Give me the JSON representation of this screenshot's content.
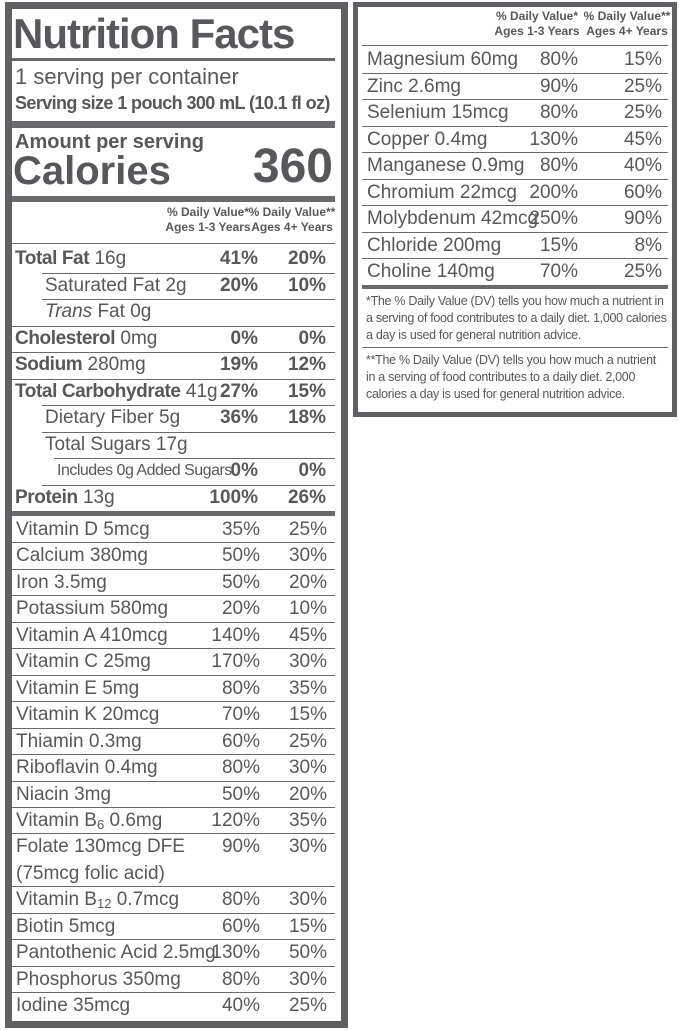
{
  "left": {
    "title": "Nutrition Facts",
    "servings": "1 serving per container",
    "serving_size": "Serving size 1 pouch 300 mL (10.1 fl oz)",
    "amount_per_serving": "Amount per serving",
    "calories_label": "Calories",
    "calories": "360",
    "dv_header": [
      [
        "% Daily Value*",
        "Ages 1-3 Years"
      ],
      [
        "% Daily Value**",
        "Ages 4+ Years"
      ]
    ],
    "nutrients": [
      {
        "name": "Total Fat",
        "amount": "16g",
        "dv1": "41%",
        "dv2": "20%"
      },
      {
        "name": "Saturated Fat",
        "amount": "2g",
        "dv1": "20%",
        "dv2": "10%"
      },
      {
        "name_italic": "Trans",
        "name": "Fat",
        "amount": "0g"
      },
      {
        "name": "Cholesterol",
        "amount": "0mg",
        "dv1": "0%",
        "dv2": "0%"
      },
      {
        "name": "Sodium",
        "amount": "280mg",
        "dv1": "19%",
        "dv2": "12%"
      },
      {
        "name": "Total Carbohydrate",
        "amount": "41g",
        "dv1": "27%",
        "dv2": "15%"
      },
      {
        "name": "Dietary Fiber",
        "amount": "5g",
        "dv1": "36%",
        "dv2": "18%"
      },
      {
        "name": "Total Sugars",
        "amount": "17g"
      },
      {
        "name": "Includes 0g Added Sugars",
        "dv1": "0%",
        "dv2": "0%"
      },
      {
        "name": "Protein",
        "amount": "13g",
        "dv1": "100%",
        "dv2": "26%"
      }
    ],
    "vitamins": [
      {
        "label": "Vitamin D 5mcg",
        "dv1": "35%",
        "dv2": "25%"
      },
      {
        "label": "Calcium 380mg",
        "dv1": "50%",
        "dv2": "30%"
      },
      {
        "label": "Iron 3.5mg",
        "dv1": "50%",
        "dv2": "20%"
      },
      {
        "label": "Potassium 580mg",
        "dv1": "20%",
        "dv2": "10%"
      },
      {
        "label": "Vitamin A 410mcg",
        "dv1": "140%",
        "dv2": "45%"
      },
      {
        "label": "Vitamin C 25mg",
        "dv1": "170%",
        "dv2": "30%"
      },
      {
        "label": "Vitamin E 5mg",
        "dv1": "80%",
        "dv2": "35%"
      },
      {
        "label": "Vitamin K 20mcg",
        "dv1": "70%",
        "dv2": "15%"
      },
      {
        "label": "Thiamin 0.3mg",
        "dv1": "60%",
        "dv2": "25%"
      },
      {
        "label": "Riboflavin 0.4mg",
        "dv1": "80%",
        "dv2": "30%"
      },
      {
        "label": "Niacin 3mg",
        "dv1": "50%",
        "dv2": "20%"
      },
      {
        "label": "Vitamin B",
        "sub": "6",
        "amount": "0.6mg",
        "dv1": "120%",
        "dv2": "35%"
      },
      {
        "label": "Folate 130mcg DFE",
        "note": "(75mcg folic acid)",
        "dv1": "90%",
        "dv2": "30%"
      },
      {
        "label": "Vitamin B",
        "sub": "12",
        "amount": "0.7mcg",
        "dv1": "80%",
        "dv2": "30%"
      },
      {
        "label": "Biotin 5mcg",
        "dv1": "60%",
        "dv2": "15%"
      },
      {
        "label": "Pantothenic Acid 2.5mg",
        "dv1": "130%",
        "dv2": "50%"
      },
      {
        "label": "Phosphorus 350mg",
        "dv1": "80%",
        "dv2": "30%"
      },
      {
        "label": "Iodine 35mcg",
        "dv1": "40%",
        "dv2": "25%"
      }
    ]
  },
  "right": {
    "dv_header": [
      [
        "% Daily Value*",
        "Ages 1-3 Years"
      ],
      [
        "% Daily Value**",
        "Ages 4+ Years"
      ]
    ],
    "rows": [
      {
        "label": "Magnesium 60mg",
        "dv1": "80%",
        "dv2": "15%"
      },
      {
        "label": "Zinc 2.6mg",
        "dv1": "90%",
        "dv2": "25%"
      },
      {
        "label": "Selenium 15mcg",
        "dv1": "80%",
        "dv2": "25%"
      },
      {
        "label": "Copper 0.4mg",
        "dv1": "130%",
        "dv2": "45%"
      },
      {
        "label": "Manganese 0.9mg",
        "dv1": "80%",
        "dv2": "40%"
      },
      {
        "label": "Chromium 22mcg",
        "dv1": "200%",
        "dv2": "60%"
      },
      {
        "label": "Molybdenum 42mcg",
        "dv1": "250%",
        "dv2": "90%"
      },
      {
        "label": "Chloride 200mg",
        "dv1": "15%",
        "dv2": "8%"
      },
      {
        "label": "Choline 140mg",
        "dv1": "70%",
        "dv2": "25%"
      }
    ],
    "footnotes": [
      "*The % Daily Value (DV) tells you how much a nutrient in a serving of food contributes to a daily diet. 1,000 calories a day is used for general nutrition advice.",
      "**The % Daily Value (DV) tells you how much a nutrient in a serving of food contributes to a daily diet. 2,000 calories a day is used for general nutrition advice."
    ]
  }
}
